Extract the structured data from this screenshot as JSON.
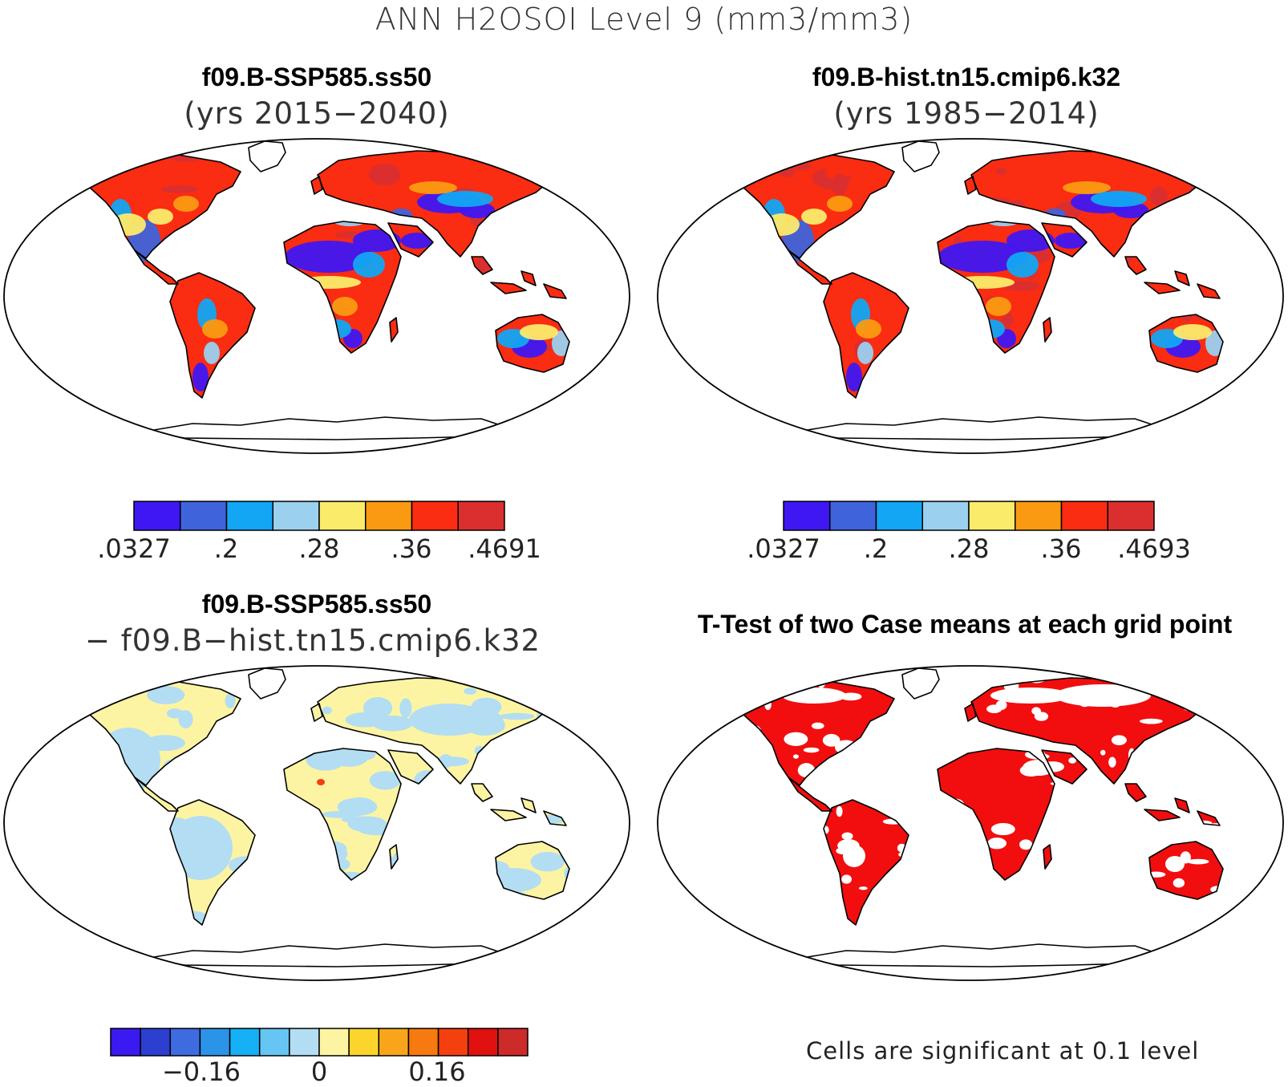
{
  "title": "ANN H2OSOI Level 9 (mm3/mm3)",
  "panels": {
    "top_left": {
      "title": "f09.B-SSP585.ss50",
      "subtitle": "(yrs 2015−2040)",
      "colorbar": {
        "colors": [
          "#3f17f2",
          "#3f63db",
          "#12a6f4",
          "#9bd0ef",
          "#fbeb6b",
          "#fa9a12",
          "#fa2c11",
          "#db2f2f"
        ],
        "tick_labels": [
          ".0327",
          ".2",
          ".28",
          ".36",
          ".4691"
        ]
      }
    },
    "top_right": {
      "title": "f09.B-hist.tn15.cmip6.k32",
      "subtitle": "(yrs 1985−2014)",
      "colorbar": {
        "colors": [
          "#3f17f2",
          "#3f63db",
          "#12a6f4",
          "#9bd0ef",
          "#fbeb6b",
          "#fa9a12",
          "#fa2c11",
          "#db2f2f"
        ],
        "tick_labels": [
          ".0327",
          ".2",
          ".28",
          ".36",
          ".4693"
        ]
      }
    },
    "bottom_left": {
      "title": "f09.B-SSP585.ss50",
      "subtitle": "− f09.B−hist.tn15.cmip6.k32",
      "colorbar": {
        "colors": [
          "#3a1af0",
          "#2c3fd1",
          "#3f6be0",
          "#2c94e8",
          "#15b0f5",
          "#66c5f2",
          "#b3ddf2",
          "#fdf4a3",
          "#fcd52c",
          "#f9a51c",
          "#f77a10",
          "#f4400f",
          "#e0110e",
          "#cd2a2a"
        ],
        "tick_labels": [
          "−0.16",
          "0",
          "0.16"
        ]
      }
    },
    "bottom_right": {
      "title": "T-Test of two Case means at each grid point",
      "note": "Cells are significant at 0.1 level",
      "significant_color": "#f20e0e"
    }
  }
}
